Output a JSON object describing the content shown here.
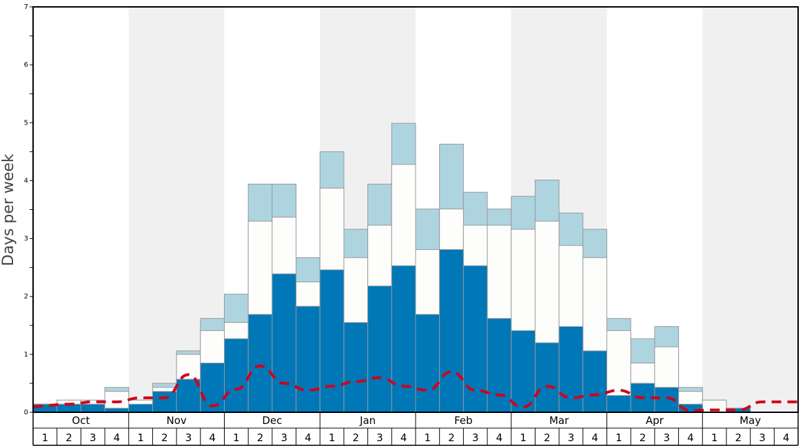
{
  "chart_data": {
    "type": "bar",
    "title": "",
    "xlabel": "",
    "ylabel": "Days per week",
    "ylim": [
      0,
      7
    ],
    "y_ticks": [
      "0",
      "1",
      "2",
      "3",
      "4",
      "5",
      "6",
      "7"
    ],
    "months": [
      "Oct",
      "Nov",
      "Dec",
      "Jan",
      "Feb",
      "Mar",
      "Apr",
      "May"
    ],
    "week_labels": [
      "1",
      "2",
      "3",
      "4",
      "1",
      "2",
      "3",
      "4",
      "1",
      "2",
      "3",
      "4",
      "1",
      "2",
      "3",
      "4",
      "1",
      "2",
      "3",
      "4",
      "1",
      "2",
      "3",
      "4",
      "1",
      "2",
      "3",
      "4",
      "1",
      "2",
      "3",
      "4"
    ],
    "layers": [
      {
        "color": "#0077b6",
        "values": [
          0.14,
          0.14,
          0.14,
          0.07,
          0.14,
          0.36,
          0.57,
          0.85,
          1.27,
          1.69,
          2.39,
          1.83,
          2.46,
          1.55,
          2.18,
          2.53,
          1.69,
          2.81,
          2.53,
          1.62,
          1.41,
          1.2,
          1.48,
          1.06,
          0.29,
          0.5,
          0.43,
          0.14,
          0.0,
          0.07,
          0.0,
          0.0
        ]
      },
      {
        "color": "#fdfdfb",
        "values": [
          0.14,
          0.21,
          0.21,
          0.36,
          0.21,
          0.43,
          1.0,
          1.41,
          1.55,
          3.3,
          3.37,
          2.25,
          3.87,
          2.67,
          3.23,
          4.28,
          2.81,
          3.51,
          3.23,
          3.23,
          3.16,
          3.3,
          2.88,
          2.67,
          1.41,
          0.85,
          1.13,
          0.36,
          0.21,
          0.07,
          0.0,
          0.0
        ]
      },
      {
        "color": "#aed4e0",
        "values": [
          0.14,
          0.21,
          0.21,
          0.43,
          0.21,
          0.5,
          1.06,
          1.62,
          2.04,
          3.94,
          3.94,
          2.67,
          4.5,
          3.16,
          3.94,
          4.99,
          3.51,
          4.63,
          3.8,
          3.51,
          3.73,
          4.01,
          3.44,
          3.16,
          1.62,
          1.27,
          1.48,
          0.43,
          0.21,
          0.07,
          0.0,
          0.0
        ]
      }
    ],
    "line": {
      "color": "#d0021b",
      "style": "dashed",
      "values": [
        0.1,
        0.14,
        0.18,
        0.18,
        0.25,
        0.25,
        0.65,
        0.11,
        0.4,
        0.8,
        0.5,
        0.38,
        0.45,
        0.53,
        0.6,
        0.45,
        0.38,
        0.7,
        0.38,
        0.3,
        0.09,
        0.45,
        0.25,
        0.3,
        0.38,
        0.25,
        0.25,
        0.03,
        0.04,
        0.04,
        0.18,
        0.18
      ]
    },
    "grid": false,
    "legend": "none",
    "background_bands": [
      "#ffffff",
      "#f0f0f0"
    ]
  }
}
